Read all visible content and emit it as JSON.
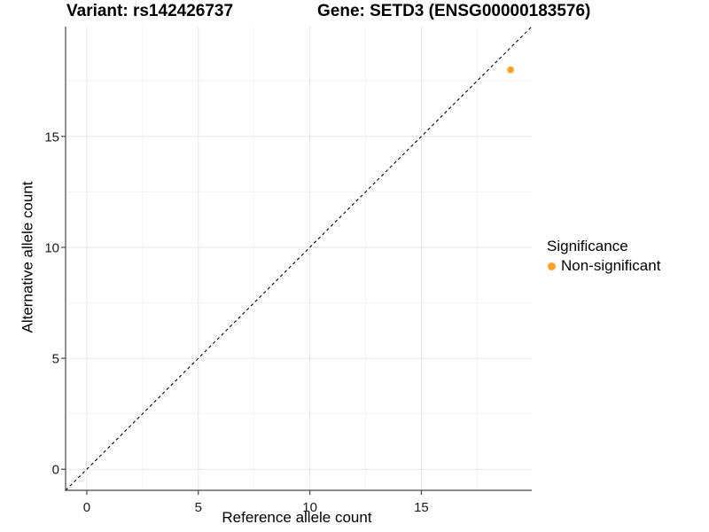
{
  "chart_data": {
    "type": "scatter",
    "title_left": "Variant: rs142426737",
    "title_right": "Gene: SETD3 (ENSG00000183576)",
    "xlabel": "Reference allele count",
    "ylabel": "Alternative allele count",
    "xlim": [
      -0.95,
      19.95
    ],
    "ylim": [
      -0.95,
      19.95
    ],
    "xticks": [
      0,
      5,
      10,
      15
    ],
    "yticks": [
      0,
      5,
      10,
      15
    ],
    "xminor_ticks": [
      2.5,
      7.5,
      12.5,
      17.5
    ],
    "yminor_ticks": [
      2.5,
      7.5,
      12.5,
      17.5
    ],
    "grid": "major+minor",
    "identity_line": {
      "slope": 1,
      "intercept": 0,
      "style": "dashed",
      "color": "#000000"
    },
    "series": [
      {
        "name": "Non-significant",
        "color": "#FBA226",
        "points": [
          {
            "x": 19,
            "y": 18
          }
        ]
      }
    ],
    "legend": {
      "title": "Significance",
      "position": "right",
      "items": [
        {
          "label": "Non-significant",
          "color": "#FBA226"
        }
      ]
    },
    "colors": {
      "axis": "#474747",
      "grid_major": "#E6E6E6",
      "grid_minor": "#F2F2F2",
      "tick_text": "#1a1a1a"
    }
  }
}
